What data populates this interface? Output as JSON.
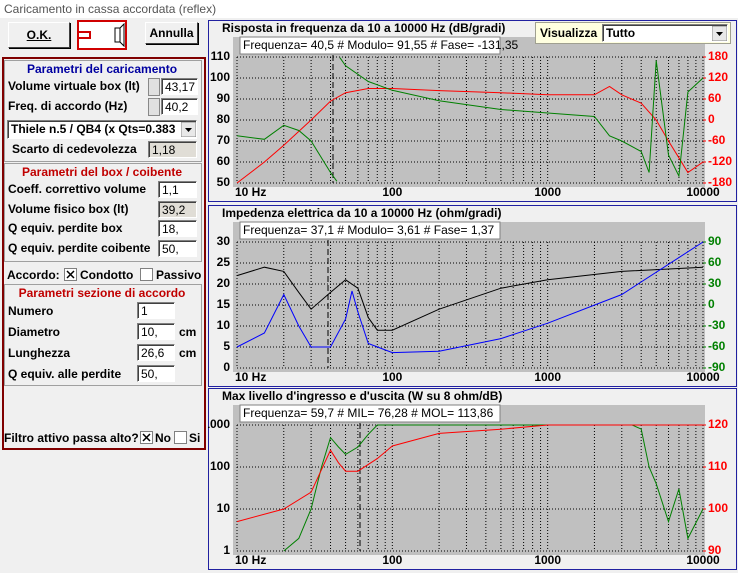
{
  "window": {
    "title": "Caricamento in cassa accordata (reflex)"
  },
  "buttons": {
    "ok": "O.K.",
    "cancel": "Annulla"
  },
  "view": {
    "label": "Visualizza",
    "value": "Tutto"
  },
  "form": {
    "loading": {
      "title": "Parametri del caricamento",
      "rows": [
        {
          "label": "Volume virtuale box (lt)",
          "value": "43,17"
        },
        {
          "label": "Freq. di accordo (Hz)",
          "value": "40,2"
        }
      ],
      "alignment": "Thiele n.5 / QB4 (x Qts=0.383",
      "compliance": {
        "label": "Scarto di cedevolezza",
        "value": "1,18"
      }
    },
    "box": {
      "title": "Parametri del box / coibente",
      "rows": [
        {
          "label": "Coeff. correttivo volume",
          "value": "1,1"
        },
        {
          "label": "Volume fisico box (lt)",
          "value": "39,2"
        },
        {
          "label": "Q equiv. perdite box",
          "value": "18,"
        },
        {
          "label": "Q equiv. perdite coibente",
          "value": "50,"
        }
      ]
    },
    "tuning": {
      "label": "Accordo:",
      "options": [
        "Condotto",
        "Passivo"
      ]
    },
    "port": {
      "title": "Parametri sezione di accordo",
      "rows": [
        {
          "label": "Numero",
          "value": "1"
        },
        {
          "label": "Diametro",
          "value": "10,",
          "unit": "cm"
        },
        {
          "label": "Lunghezza",
          "value": "26,6",
          "unit": "cm"
        },
        {
          "label": "Q equiv. alle perdite",
          "value": "50,"
        }
      ]
    },
    "filter": {
      "label": "Filtro attivo passa alto?",
      "options": [
        "No",
        "Si"
      ]
    }
  },
  "chart_data": [
    {
      "type": "line",
      "title": "Risposta in frequenza da 10 a 10000 Hz (dB/gradi)",
      "info": "Frequenza= 40,5 # Modulo= 91,55 # Fase= -131,35",
      "xlog": true,
      "xlim": [
        10,
        10000
      ],
      "xticks": [
        {
          "value": 10,
          "label": "10 Hz"
        },
        100,
        1000,
        10000
      ],
      "ylim": [
        50,
        110
      ],
      "yticks": [
        110,
        100,
        90,
        80,
        70,
        60,
        50
      ],
      "y2lim": [
        -180,
        180
      ],
      "y2ticks": [
        180,
        120,
        60,
        0,
        -60,
        -120,
        -180
      ],
      "y2color": "#ff0000",
      "grid": true,
      "series": [
        {
          "color": "#ff0000",
          "x": [
            10,
            15,
            20,
            30,
            40,
            50,
            70,
            100,
            200,
            500,
            1000,
            2000,
            2500,
            3000,
            4000,
            5000,
            6000,
            7000,
            8000,
            10000
          ],
          "values": [
            50,
            60,
            68,
            80,
            89,
            93,
            95,
            95,
            94,
            93,
            92,
            92,
            96,
            92,
            88,
            80,
            70,
            62,
            55,
            60
          ]
        },
        {
          "color": "#008000",
          "axis": "y2",
          "x": [
            10,
            15,
            20,
            25,
            30,
            40,
            44,
            45,
            46,
            50,
            70,
            100,
            200,
            500,
            1000,
            2000,
            2500,
            3000,
            4000,
            4500,
            5000,
            6000,
            7000,
            8000,
            10000
          ],
          "values": [
            -45,
            -55,
            -15,
            -30,
            -60,
            -150,
            -175,
            null,
            178,
            155,
            110,
            85,
            55,
            30,
            20,
            10,
            -45,
            -60,
            -90,
            -150,
            170,
            -100,
            -160,
            80,
            120
          ]
        }
      ]
    },
    {
      "type": "line",
      "title": "Impedenza elettrica da 10 a 10000 Hz (ohm/gradi)",
      "info": "Frequenza= 37,1 # Modulo= 3,61 # Fase= 1,37",
      "xlog": true,
      "xlim": [
        10,
        10000
      ],
      "xticks": [
        {
          "value": 10,
          "label": "10 Hz"
        },
        100,
        1000,
        10000
      ],
      "ylim": [
        0,
        30
      ],
      "yticks": [
        30,
        25,
        20,
        15,
        10,
        5,
        0
      ],
      "y2lim": [
        -90,
        90
      ],
      "y2ticks": [
        90,
        60,
        30,
        0,
        -30,
        -60,
        -90
      ],
      "y2color": "#008000",
      "grid": true,
      "series": [
        {
          "color": "#000000",
          "x": [
            10,
            15,
            20,
            25,
            30,
            40,
            50,
            60,
            70,
            80,
            100,
            200,
            500,
            1000,
            3000,
            10000
          ],
          "values": [
            22,
            24,
            23,
            18,
            14,
            18,
            21,
            19,
            12,
            9,
            9,
            14,
            19,
            21,
            23,
            24
          ]
        },
        {
          "color": "#0000ff",
          "axis": "y2",
          "x": [
            10,
            15,
            20,
            25,
            30,
            40,
            50,
            55,
            60,
            70,
            100,
            200,
            500,
            1000,
            3000,
            10000
          ],
          "values": [
            -60,
            -40,
            15,
            -30,
            -60,
            -60,
            -20,
            20,
            -10,
            -55,
            -68,
            -66,
            -48,
            -26,
            15,
            90
          ]
        }
      ]
    },
    {
      "type": "line",
      "title": "Max livello d'ingresso e d'uscita (W su 8 ohm/dB)",
      "info": "Frequenza= 59,7 # MIL= 76,28 # MOL= 113,86",
      "xlog": true,
      "xlim": [
        10,
        10000
      ],
      "xticks": [
        {
          "value": 10,
          "label": "10 Hz"
        },
        100,
        1000,
        10000
      ],
      "ylog": true,
      "ylim": [
        1,
        1000
      ],
      "yticks": [
        1000,
        100,
        10,
        1
      ],
      "y2lim": [
        90,
        120
      ],
      "y2ticks": [
        120,
        110,
        100,
        90
      ],
      "y2color": "#ff0000",
      "grid": true,
      "series": [
        {
          "color": "#008000",
          "x": [
            20,
            25,
            30,
            35,
            40,
            45,
            50,
            60,
            70,
            80,
            100,
            1000,
            3500,
            4000,
            4500,
            5000,
            6000,
            7000,
            8000,
            10000
          ],
          "values": [
            1,
            2,
            10,
            100,
            500,
            300,
            200,
            300,
            600,
            1000,
            1000,
            1000,
            1000,
            800,
            100,
            40,
            5,
            30,
            2,
            10
          ]
        },
        {
          "color": "#ff0000",
          "axis": "y2",
          "x": [
            10,
            20,
            30,
            40,
            45,
            50,
            60,
            80,
            100,
            200,
            500,
            1000,
            10000
          ],
          "values": [
            97,
            100,
            104,
            114,
            111,
            109,
            109,
            112,
            115,
            118,
            119,
            120,
            120
          ]
        }
      ]
    }
  ]
}
